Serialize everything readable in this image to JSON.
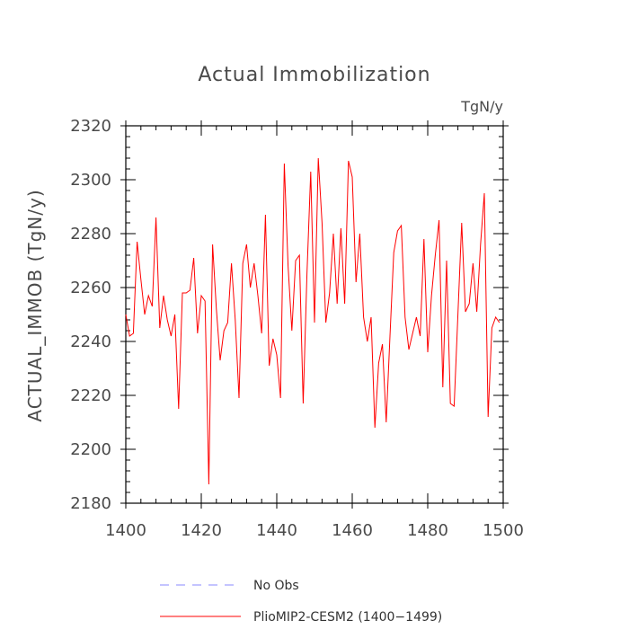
{
  "chart_data": {
    "type": "line",
    "title": "Actual Immobilization",
    "units": "TgN/y",
    "ylabel": "ACTUAL_IMMOB  (TgN/y)",
    "xlabel": "",
    "xlim": [
      1400,
      1500
    ],
    "ylim": [
      2180,
      2320
    ],
    "xticks": [
      1400,
      1420,
      1440,
      1460,
      1480,
      1500
    ],
    "yticks": [
      2180,
      2200,
      2220,
      2240,
      2260,
      2280,
      2300,
      2320
    ],
    "x_start": 1400,
    "x_step": 1,
    "series": [
      {
        "name": "PlioMIP2-CESM2 (1400-1499)",
        "color": "#ff0000",
        "dash": "solid",
        "values": [
          2250,
          2242,
          2243,
          2277,
          2263,
          2250,
          2257,
          2253,
          2286,
          2245,
          2257,
          2248,
          2242,
          2250,
          2215,
          2258,
          2258,
          2259,
          2271,
          2243,
          2257,
          2255,
          2187,
          2276,
          2252,
          2233,
          2244,
          2247,
          2269,
          2248,
          2219,
          2269,
          2276,
          2260,
          2269,
          2257,
          2243,
          2287,
          2231,
          2241,
          2235,
          2219,
          2306,
          2268,
          2244,
          2270,
          2272,
          2217,
          2265,
          2303,
          2247,
          2308,
          2284,
          2247,
          2258,
          2280,
          2254,
          2282,
          2254,
          2307,
          2301,
          2262,
          2280,
          2249,
          2240,
          2249,
          2208,
          2232,
          2239,
          2210,
          2242,
          2273,
          2281,
          2283,
          2249,
          2237,
          2243,
          2249,
          2242,
          2278,
          2236,
          2257,
          2272,
          2285,
          2223,
          2270,
          2217,
          2216,
          2250,
          2284,
          2251,
          2254,
          2269,
          2251,
          2276,
          2295,
          2212,
          2245,
          2249,
          2247
        ]
      },
      {
        "name": "No Obs",
        "color": "#8888ff",
        "dash": "dashed",
        "values": []
      }
    ],
    "legend": {
      "position": "bottom-center",
      "entries": [
        "No Obs",
        "PlioMIP2-CESM2 (1400−1499)"
      ]
    }
  }
}
